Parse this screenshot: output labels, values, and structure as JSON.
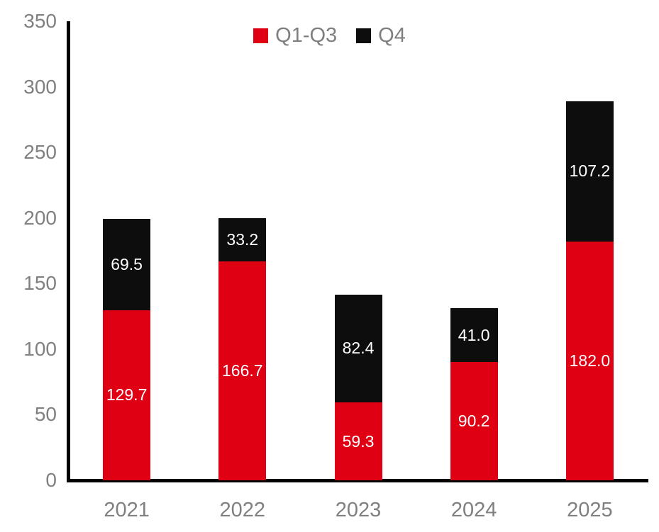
{
  "chart_data": {
    "type": "bar",
    "stacked": true,
    "title": "",
    "xlabel": "",
    "ylabel": "",
    "categories": [
      "2021",
      "2022",
      "2023",
      "2024",
      "2025"
    ],
    "series": [
      {
        "name": "Q1-Q3",
        "color": "#e00014",
        "values": [
          129.7,
          166.7,
          59.3,
          90.2,
          182.0
        ],
        "labels": [
          "129.7",
          "166.7",
          "59.3",
          "90.2",
          "182.0"
        ]
      },
      {
        "name": "Q4",
        "color": "#0d0d0d",
        "values": [
          69.5,
          33.2,
          82.4,
          41.0,
          107.2
        ],
        "labels": [
          "69.5",
          "33.2",
          "82.4",
          "41.0",
          "107.2"
        ]
      }
    ],
    "totals": [
      199.2,
      199.9,
      141.7,
      131.2,
      289.2
    ],
    "ylim": [
      0,
      350
    ],
    "yticks": [
      0,
      50,
      100,
      150,
      200,
      250,
      300,
      350
    ],
    "grid": false,
    "legend_position": "top",
    "value_label_color": "#ffffff",
    "axis_text_color": "#808080",
    "axis_line_color": "#000000"
  }
}
